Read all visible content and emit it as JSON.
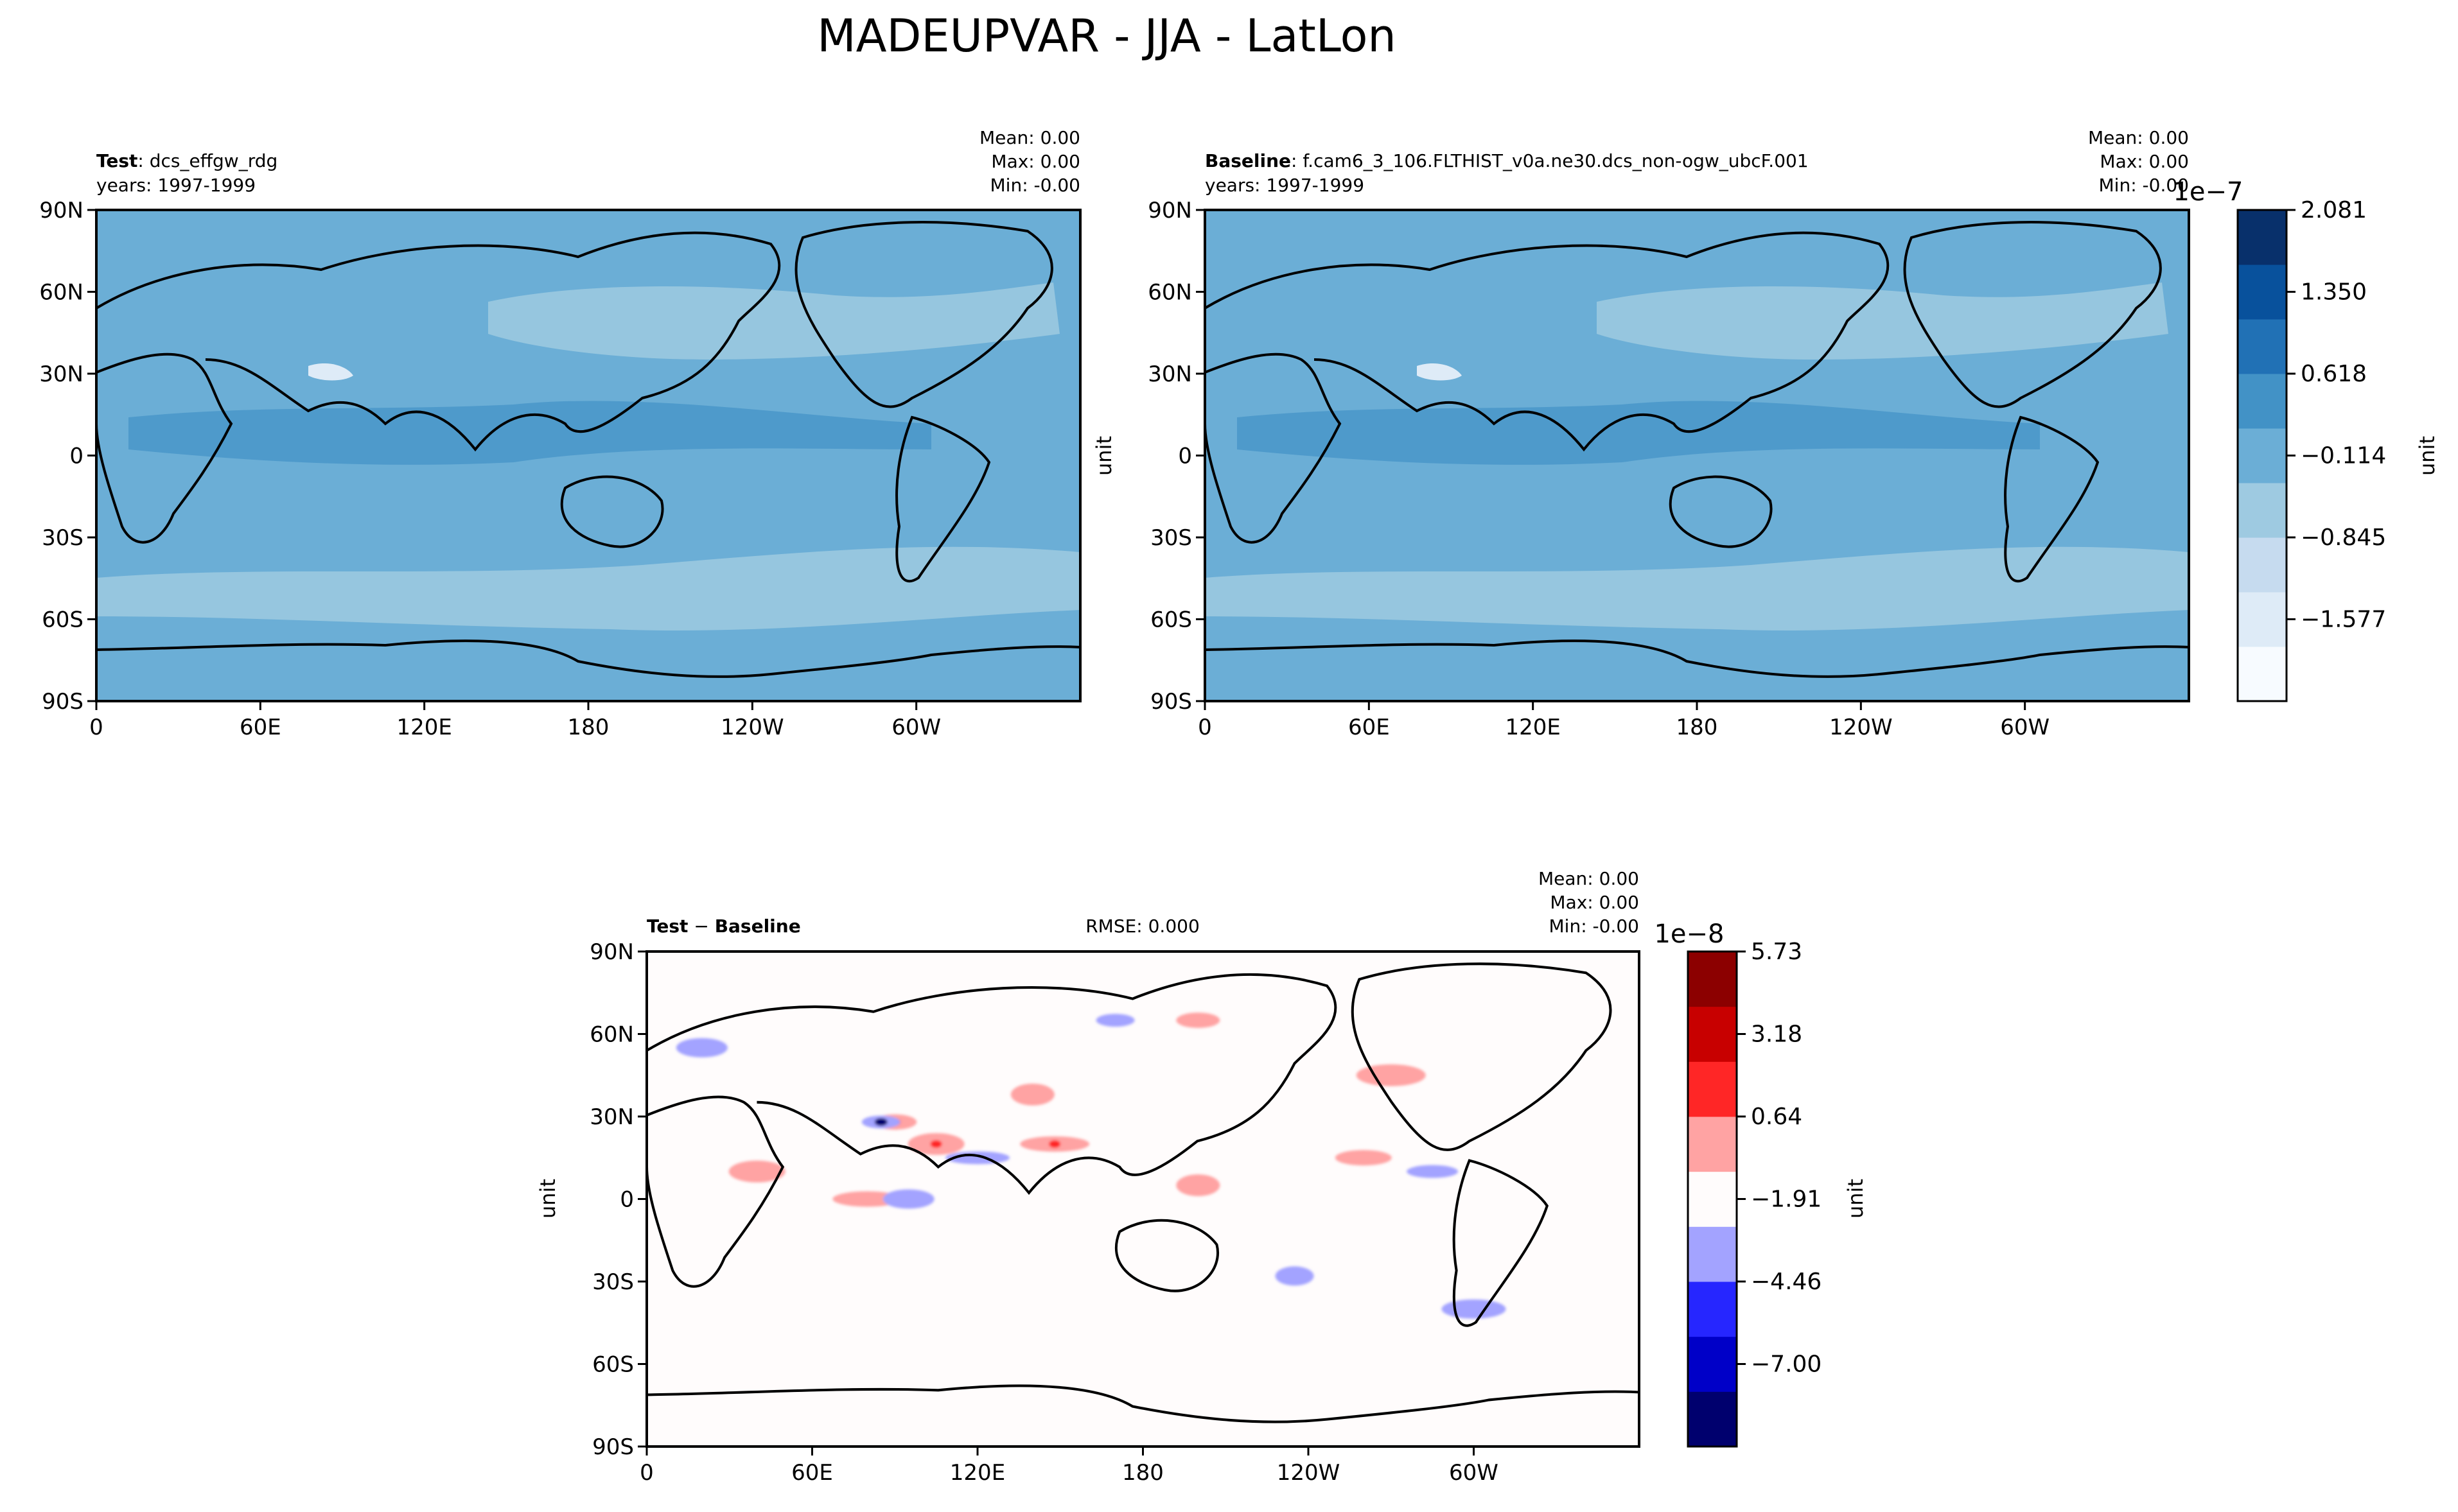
{
  "figure_title": "MADEUPVAR - JJA - LatLon",
  "axis_ticks": {
    "x": [
      "0",
      "60E",
      "120E",
      "180",
      "120W",
      "60W"
    ],
    "y": [
      "90N",
      "60N",
      "30N",
      "0",
      "30S",
      "60S",
      "90S"
    ]
  },
  "stat_labels": {
    "mean": "Mean:",
    "max": "Max:",
    "min": "Min:"
  },
  "panels": {
    "test": {
      "label_bold": "Test",
      "label_rest": ": dcs_effgw_rdg",
      "years": "years: 1997-1999",
      "stats": {
        "mean": "0.00",
        "max": "0.00",
        "min": "-0.00"
      },
      "ylabel": ""
    },
    "baseline": {
      "label_bold": "Baseline",
      "label_rest": ": f.cam6_3_106.FLTHIST_v0a.ne30.dcs_non-ogw_ubcF.001",
      "years": "years: 1997-1999",
      "stats": {
        "mean": "0.00",
        "max": "0.00",
        "min": "-0.00"
      },
      "ylabel": "unit"
    },
    "diff": {
      "label_bold_1": "Test",
      "label_sep": " − ",
      "label_bold_2": "Baseline",
      "rmse": "RMSE: 0.000",
      "stats": {
        "mean": "0.00",
        "max": "0.00",
        "min": "-0.00"
      },
      "ylabel": "unit"
    }
  },
  "colorbars": {
    "main": {
      "exponent": "1e−7",
      "label": "unit",
      "ticks": [
        "2.081",
        "1.350",
        "0.618",
        "−0.114",
        "−0.845",
        "−1.577"
      ],
      "colors": [
        "#f7fbff",
        "#deebf7",
        "#c6dbef",
        "#9ecae1",
        "#6baed6",
        "#4292c6",
        "#2171b5",
        "#08519c",
        "#08306b"
      ]
    },
    "diff": {
      "exponent": "1e−8",
      "label": "unit",
      "ticks": [
        "5.73",
        "3.18",
        "0.64",
        "−1.91",
        "−4.46",
        "−7.00"
      ],
      "colors": [
        "#00006e",
        "#0000c8",
        "#2626ff",
        "#a3a3ff",
        "#fffcfc",
        "#ffa3a3",
        "#ff2626",
        "#c80000",
        "#8c0000"
      ]
    }
  },
  "chart_data": [
    {
      "type": "heatmap",
      "title": "Test: dcs_effgw_rdg",
      "subtitle": "years: 1997-1999",
      "projection": "PlateCarree",
      "xlabel": "",
      "ylabel": "",
      "xlim": [
        0,
        360
      ],
      "ylim": [
        -90,
        90
      ],
      "xticks": [
        "0",
        "60E",
        "120E",
        "180",
        "120W",
        "60W"
      ],
      "yticks": [
        "90N",
        "60N",
        "30N",
        "0",
        "30S",
        "60S",
        "90S"
      ],
      "stats": {
        "mean": 0.0,
        "max": 0.0,
        "min": -0.0
      },
      "colorbar_levels_1e-7": [
        2.081,
        1.35,
        0.618,
        -0.114,
        -0.845,
        -1.577
      ],
      "dominant_level_range_1e-7": [
        -0.114,
        0.618
      ],
      "features": [
        "field mostly in the -0.114 to 0.618 band",
        "slightly lower band across North Pacific near 45N",
        "slightly lower band in southern mid-latitudes near 45S",
        "tropical band slightly higher across Indian and Pacific oceans",
        "local minimum over Tibetan Plateau"
      ]
    },
    {
      "type": "heatmap",
      "title": "Baseline: f.cam6_3_106.FLTHIST_v0a.ne30.dcs_non-ogw_ubcF.001",
      "subtitle": "years: 1997-1999",
      "projection": "PlateCarree",
      "xlabel": "",
      "ylabel": "unit",
      "xlim": [
        0,
        360
      ],
      "ylim": [
        -90,
        90
      ],
      "xticks": [
        "0",
        "60E",
        "120E",
        "180",
        "120W",
        "60W"
      ],
      "yticks": [
        "90N",
        "60N",
        "30N",
        "0",
        "30S",
        "60S",
        "90S"
      ],
      "stats": {
        "mean": 0.0,
        "max": 0.0,
        "min": -0.0
      },
      "colorbar_levels_1e-7": [
        2.081,
        1.35,
        0.618,
        -0.114,
        -0.845,
        -1.577
      ],
      "dominant_level_range_1e-7": [
        -0.114,
        0.618
      ]
    },
    {
      "type": "heatmap",
      "title": "Test − Baseline",
      "annotation": "RMSE: 0.000",
      "projection": "PlateCarree",
      "xlabel": "",
      "ylabel": "unit",
      "xlim": [
        0,
        360
      ],
      "ylim": [
        -90,
        90
      ],
      "xticks": [
        "0",
        "60E",
        "120E",
        "180",
        "120W",
        "60W"
      ],
      "yticks": [
        "90N",
        "60N",
        "30N",
        "0",
        "30S",
        "60S",
        "90S"
      ],
      "stats": {
        "mean": 0.0,
        "max": 0.0,
        "min": -0.0,
        "rmse": 0.0
      },
      "colorbar_levels_1e-8": [
        5.73,
        3.18,
        0.64,
        -1.91,
        -4.46,
        -7.0
      ],
      "positive_anomalies": [
        {
          "lon": 90,
          "lat": 28
        },
        {
          "lon": 105,
          "lat": 20
        },
        {
          "lon": 148,
          "lat": 20
        },
        {
          "lon": 140,
          "lat": 38
        },
        {
          "lon": 260,
          "lat": 15
        },
        {
          "lon": 270,
          "lat": 45
        },
        {
          "lon": 200,
          "lat": 65
        },
        {
          "lon": 40,
          "lat": 10
        },
        {
          "lon": 80,
          "lat": 0
        },
        {
          "lon": 200,
          "lat": 5
        }
      ],
      "negative_anomalies": [
        {
          "lon": 85,
          "lat": 28
        },
        {
          "lon": 95,
          "lat": 0
        },
        {
          "lon": 120,
          "lat": 15
        },
        {
          "lon": 235,
          "lat": -28
        },
        {
          "lon": 285,
          "lat": 10
        },
        {
          "lon": 300,
          "lat": -40
        },
        {
          "lon": 170,
          "lat": 65
        },
        {
          "lon": 20,
          "lat": 55
        }
      ]
    }
  ]
}
